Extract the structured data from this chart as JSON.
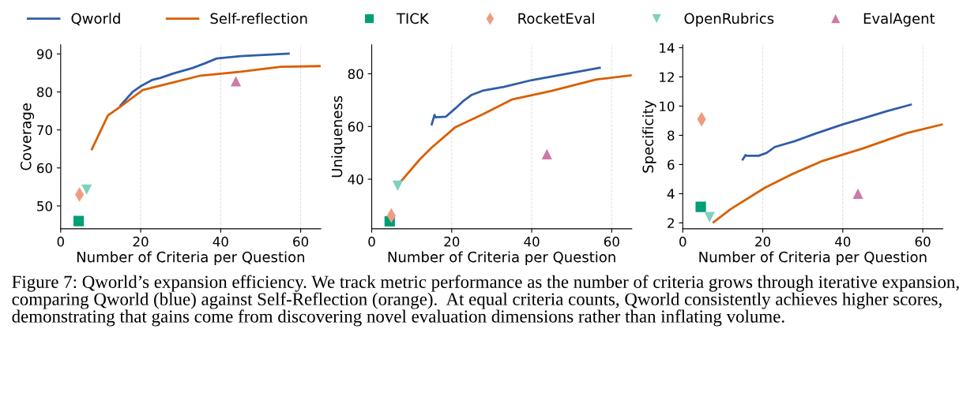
{
  "chart_data": [
    {
      "type": "line",
      "xlabel": "Number of Criteria per Question",
      "ylabel": "Coverage",
      "xlim": [
        0,
        65
      ],
      "xticks": [
        0,
        20,
        40,
        60
      ],
      "ylim": [
        44,
        92.4
      ],
      "yticks": [
        50,
        60,
        70,
        80,
        90
      ],
      "grid": "x",
      "legend": "top",
      "annotations": [
        "Figure 7: Qworld’s expansion efficiency. We track metric performance as the number of criteria grows through iterative expansion, comparing Qworld (blue) against Self-Reflection (orange).  At equal criteria counts, Qworld consistently achieves higher scores, demonstrating that gains come from discovering novel evaluation dimensions rather than inflating volume."
      ],
      "series": [
        {
          "name": "Qworld",
          "color": "#2f5ea8",
          "x": [
            15,
            18,
            20,
            23,
            25,
            28,
            33,
            36,
            39,
            45,
            57
          ],
          "values": [
            76.5,
            80,
            81.5,
            83.2,
            83.7,
            84.8,
            86.3,
            87.5,
            88.8,
            89.4,
            90.1
          ]
        },
        {
          "name": "Self-reflection",
          "color": "#d95f02",
          "x": [
            7.8,
            11.8,
            15,
            20.5,
            25,
            35,
            45,
            55,
            65
          ],
          "values": [
            64.9,
            73.8,
            76.2,
            80.5,
            81.7,
            84.3,
            85.3,
            86.6,
            86.8
          ]
        },
        {
          "name": "TICK",
          "type": "scatter",
          "marker": "square",
          "color": "#009e73",
          "x": [
            4.5
          ],
          "values": [
            46.0
          ]
        },
        {
          "name": "RocketEval",
          "type": "scatter",
          "marker": "diamond",
          "color": "#f09c80",
          "x": [
            4.7
          ],
          "values": [
            53
          ]
        },
        {
          "name": "OpenRubrics",
          "type": "scatter",
          "marker": "triangle_down",
          "color": "#7fd1bb",
          "x": [
            6.5
          ],
          "values": [
            54.3
          ]
        },
        {
          "name": "EvalAgent",
          "type": "scatter",
          "marker": "triangle",
          "color": "#cc79a7",
          "x": [
            43.8
          ],
          "values": [
            82.8
          ]
        }
      ]
    },
    {
      "type": "line",
      "xlabel": "Number of Criteria per Question",
      "ylabel": "Uniqueness",
      "xlim": [
        0,
        65
      ],
      "xticks": [
        0,
        20,
        40,
        60
      ],
      "ylim": [
        21.2,
        91
      ],
      "yticks": [
        40,
        60,
        80
      ],
      "grid": "x",
      "series": [
        {
          "color": "#2f5ea8",
          "x": [
            15,
            15.7,
            16,
            18.5,
            21,
            23,
            25,
            28,
            33,
            40,
            47,
            57
          ],
          "values": [
            60.8,
            64.4,
            63.5,
            63.7,
            67,
            69.8,
            72,
            73.7,
            75,
            77.6,
            79.5,
            82.3
          ]
        },
        {
          "color": "#d95f02",
          "x": [
            7.5,
            12,
            15,
            20.8,
            28,
            35,
            45,
            56,
            65
          ],
          "values": [
            39.5,
            47.5,
            52,
            59.6,
            64.8,
            70.2,
            73.5,
            77.8,
            79.4
          ]
        },
        {
          "type": "scatter",
          "marker": "square",
          "color": "#009e73",
          "x": [
            4.5
          ],
          "values": [
            24
          ]
        },
        {
          "type": "scatter",
          "marker": "diamond",
          "color": "#f09c80",
          "x": [
            4.9
          ],
          "values": [
            26.2
          ]
        },
        {
          "type": "scatter",
          "marker": "triangle_down",
          "color": "#7fd1bb",
          "x": [
            6.5
          ],
          "values": [
            37.5
          ]
        },
        {
          "type": "scatter",
          "marker": "triangle",
          "color": "#cc79a7",
          "x": [
            43.8
          ],
          "values": [
            49.5
          ]
        }
      ]
    },
    {
      "type": "line",
      "xlabel": "Number of Criteria per Question",
      "ylabel": "Specificity",
      "xlim": [
        0,
        65
      ],
      "xticks": [
        0,
        20,
        40,
        60
      ],
      "ylim": [
        1.6,
        14.2
      ],
      "yticks": [
        2,
        4,
        6,
        8,
        10,
        12,
        14
      ],
      "grid": "x",
      "series": [
        {
          "color": "#2f5ea8",
          "x": [
            15,
            15.7,
            16,
            19,
            21,
            23,
            28,
            33,
            40,
            45,
            51,
            57
          ],
          "values": [
            6.35,
            6.65,
            6.6,
            6.6,
            6.8,
            7.2,
            7.6,
            8.1,
            8.75,
            9.15,
            9.65,
            10.1
          ]
        },
        {
          "color": "#d95f02",
          "x": [
            7.7,
            12,
            20.5,
            27,
            35,
            45,
            56,
            65
          ],
          "values": [
            2.05,
            2.95,
            4.4,
            5.3,
            6.25,
            7.1,
            8.15,
            8.75
          ]
        },
        {
          "type": "scatter",
          "marker": "square",
          "color": "#009e73",
          "x": [
            4.5
          ],
          "values": [
            3.1
          ]
        },
        {
          "type": "scatter",
          "marker": "diamond",
          "color": "#f09c80",
          "x": [
            4.7
          ],
          "values": [
            9.1
          ]
        },
        {
          "type": "scatter",
          "marker": "triangle_down",
          "color": "#7fd1bb",
          "x": [
            6.7
          ],
          "values": [
            2.4
          ]
        },
        {
          "type": "scatter",
          "marker": "triangle",
          "color": "#cc79a7",
          "x": [
            43.8
          ],
          "values": [
            4.0
          ]
        }
      ]
    }
  ]
}
